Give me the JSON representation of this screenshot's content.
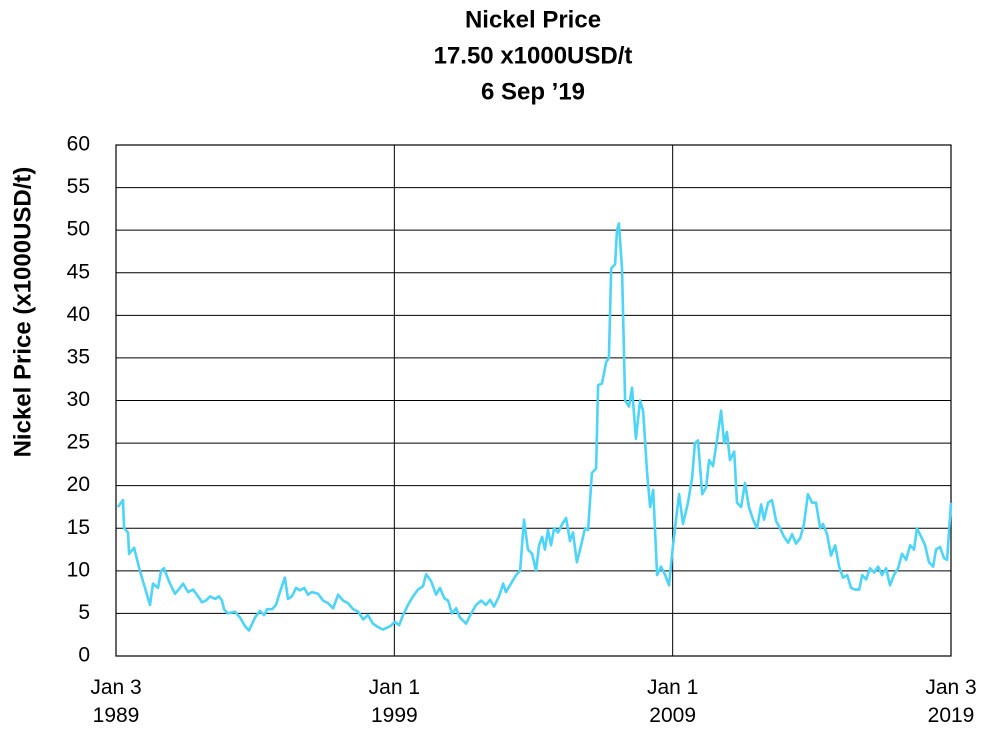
{
  "chart_data": {
    "type": "line",
    "title": "Nickel Price",
    "subtitle": [
      "17.50 x1000USD/t",
      "6 Sep ’19"
    ],
    "y_label": "Nickel Price (x1000USD/t)",
    "color": "#4dd4f7",
    "grid": true,
    "xlim": [
      1989,
      2019
    ],
    "xticks": [
      {
        "value": 1989,
        "label": "Jan 3\n1989"
      },
      {
        "value": 1999,
        "label": "Jan 1\n1999"
      },
      {
        "value": 2009,
        "label": "Jan 1\n2009"
      },
      {
        "value": 2019,
        "label": "Jan 3\n2019"
      }
    ],
    "ylim": [
      0,
      60
    ],
    "yticks": [
      0,
      5,
      10,
      15,
      20,
      25,
      30,
      35,
      40,
      45,
      50,
      55,
      60
    ],
    "x": [
      1989.07,
      1989.25,
      1989.29,
      1989.43,
      1989.47,
      1989.65,
      1989.86,
      1990.22,
      1990.33,
      1990.51,
      1990.62,
      1990.72,
      1990.94,
      1991.12,
      1991.3,
      1991.41,
      1991.59,
      1991.77,
      1991.95,
      1992.09,
      1992.23,
      1992.38,
      1992.56,
      1992.7,
      1992.81,
      1992.88,
      1993.02,
      1993.28,
      1993.46,
      1993.64,
      1993.78,
      1993.99,
      1994.17,
      1994.32,
      1994.43,
      1994.61,
      1994.75,
      1994.89,
      1995.07,
      1995.18,
      1995.32,
      1995.47,
      1995.61,
      1995.76,
      1995.9,
      1996.04,
      1996.26,
      1996.44,
      1996.62,
      1996.8,
      1996.98,
      1997.16,
      1997.34,
      1997.52,
      1997.7,
      1997.88,
      1998.05,
      1998.23,
      1998.41,
      1998.59,
      1998.85,
      1999.02,
      1999.17,
      1999.31,
      1999.49,
      1999.67,
      1999.85,
      2000.03,
      2000.14,
      2000.32,
      2000.5,
      2000.64,
      2000.79,
      2000.93,
      2001.07,
      2001.22,
      2001.36,
      2001.58,
      2001.76,
      2001.94,
      2002.12,
      2002.29,
      2002.44,
      2002.58,
      2002.76,
      2002.91,
      2003.01,
      2003.19,
      2003.37,
      2003.52,
      2003.66,
      2003.8,
      2003.95,
      2004.09,
      2004.2,
      2004.31,
      2004.41,
      2004.52,
      2004.63,
      2004.74,
      2004.88,
      2005.03,
      2005.17,
      2005.31,
      2005.42,
      2005.56,
      2005.71,
      2005.85,
      2005.96,
      2006.1,
      2006.25,
      2006.32,
      2006.46,
      2006.61,
      2006.71,
      2006.79,
      2006.93,
      2007.0,
      2007.07,
      2007.18,
      2007.29,
      2007.43,
      2007.54,
      2007.68,
      2007.83,
      2007.94,
      2008.08,
      2008.19,
      2008.3,
      2008.44,
      2008.58,
      2008.73,
      2008.87,
      2008.98,
      2009.12,
      2009.23,
      2009.37,
      2009.55,
      2009.7,
      2009.8,
      2009.91,
      2010.06,
      2010.2,
      2010.31,
      2010.45,
      2010.6,
      2010.74,
      2010.85,
      2010.95,
      2011.06,
      2011.21,
      2011.31,
      2011.46,
      2011.6,
      2011.74,
      2011.89,
      2012.03,
      2012.18,
      2012.28,
      2012.43,
      2012.57,
      2012.72,
      2012.86,
      2013.0,
      2013.15,
      2013.29,
      2013.43,
      2013.58,
      2013.72,
      2013.86,
      2014.01,
      2014.15,
      2014.3,
      2014.4,
      2014.55,
      2014.69,
      2014.84,
      2014.98,
      2015.12,
      2015.27,
      2015.41,
      2015.55,
      2015.7,
      2015.81,
      2015.95,
      2016.09,
      2016.24,
      2016.38,
      2016.52,
      2016.67,
      2016.81,
      2016.95,
      2017.1,
      2017.24,
      2017.39,
      2017.53,
      2017.67,
      2017.78,
      2017.93,
      2018.07,
      2018.21,
      2018.36,
      2018.46,
      2018.61,
      2018.75,
      2018.86,
      2019.0
    ],
    "values": [
      17.5,
      18.3,
      15,
      14.5,
      12,
      12.7,
      10,
      6,
      8.5,
      8,
      10,
      10.3,
      8.5,
      7.3,
      8,
      8.5,
      7.5,
      7.8,
      7,
      6.3,
      6.5,
      7,
      6.7,
      7,
      6.5,
      5.5,
      5,
      5.2,
      4.5,
      3.5,
      3,
      4.5,
      5.3,
      4.8,
      5.5,
      5.5,
      6,
      7.5,
      9.2,
      6.7,
      7,
      8,
      7.7,
      8,
      7.2,
      7.5,
      7.3,
      6.5,
      6.2,
      5.6,
      7.2,
      6.5,
      6.2,
      5.5,
      5.2,
      4.3,
      4.8,
      3.8,
      3.4,
      3.1,
      3.5,
      4,
      3.6,
      4.8,
      6,
      7,
      7.8,
      8.2,
      9.6,
      8.8,
      7.2,
      8,
      6.8,
      6.5,
      5,
      5.6,
      4.5,
      3.8,
      5,
      6,
      6.5,
      6,
      6.6,
      5.8,
      7,
      8.5,
      7.5,
      8.5,
      9.5,
      10,
      16,
      12.5,
      12,
      10,
      13,
      14,
      12.5,
      14.8,
      13,
      15,
      14.5,
      15.5,
      16.2,
      13.5,
      14.5,
      11,
      13,
      15,
      14.8,
      21.5,
      22,
      31.8,
      32,
      34.5,
      35,
      45.5,
      46,
      50,
      50.8,
      45.5,
      30,
      29.3,
      31.5,
      25.5,
      30,
      28.7,
      21.5,
      17.5,
      19.5,
      9.5,
      10.5,
      9.5,
      8.3,
      12,
      16,
      19,
      15.5,
      18,
      21,
      25,
      25.3,
      19,
      19.8,
      23,
      22.3,
      25.5,
      28.8,
      25,
      26.3,
      23,
      24,
      18,
      17.5,
      20.3,
      17.5,
      16,
      15,
      17.8,
      16,
      18,
      18.3,
      15.8,
      15,
      14,
      13.3,
      14.3,
      13.2,
      13.8,
      15.5,
      19,
      18,
      18,
      15,
      15.5,
      14.3,
      11.8,
      13,
      10.5,
      9.2,
      9.5,
      8,
      7.8,
      7.8,
      9.5,
      9,
      10.3,
      9.8,
      10.5,
      9.5,
      10.3,
      8.3,
      9.5,
      10.3,
      12,
      11.3,
      13,
      12.5,
      15,
      14,
      13,
      11,
      10.5,
      12.5,
      12.8,
      11.5,
      11.3,
      18
    ]
  }
}
